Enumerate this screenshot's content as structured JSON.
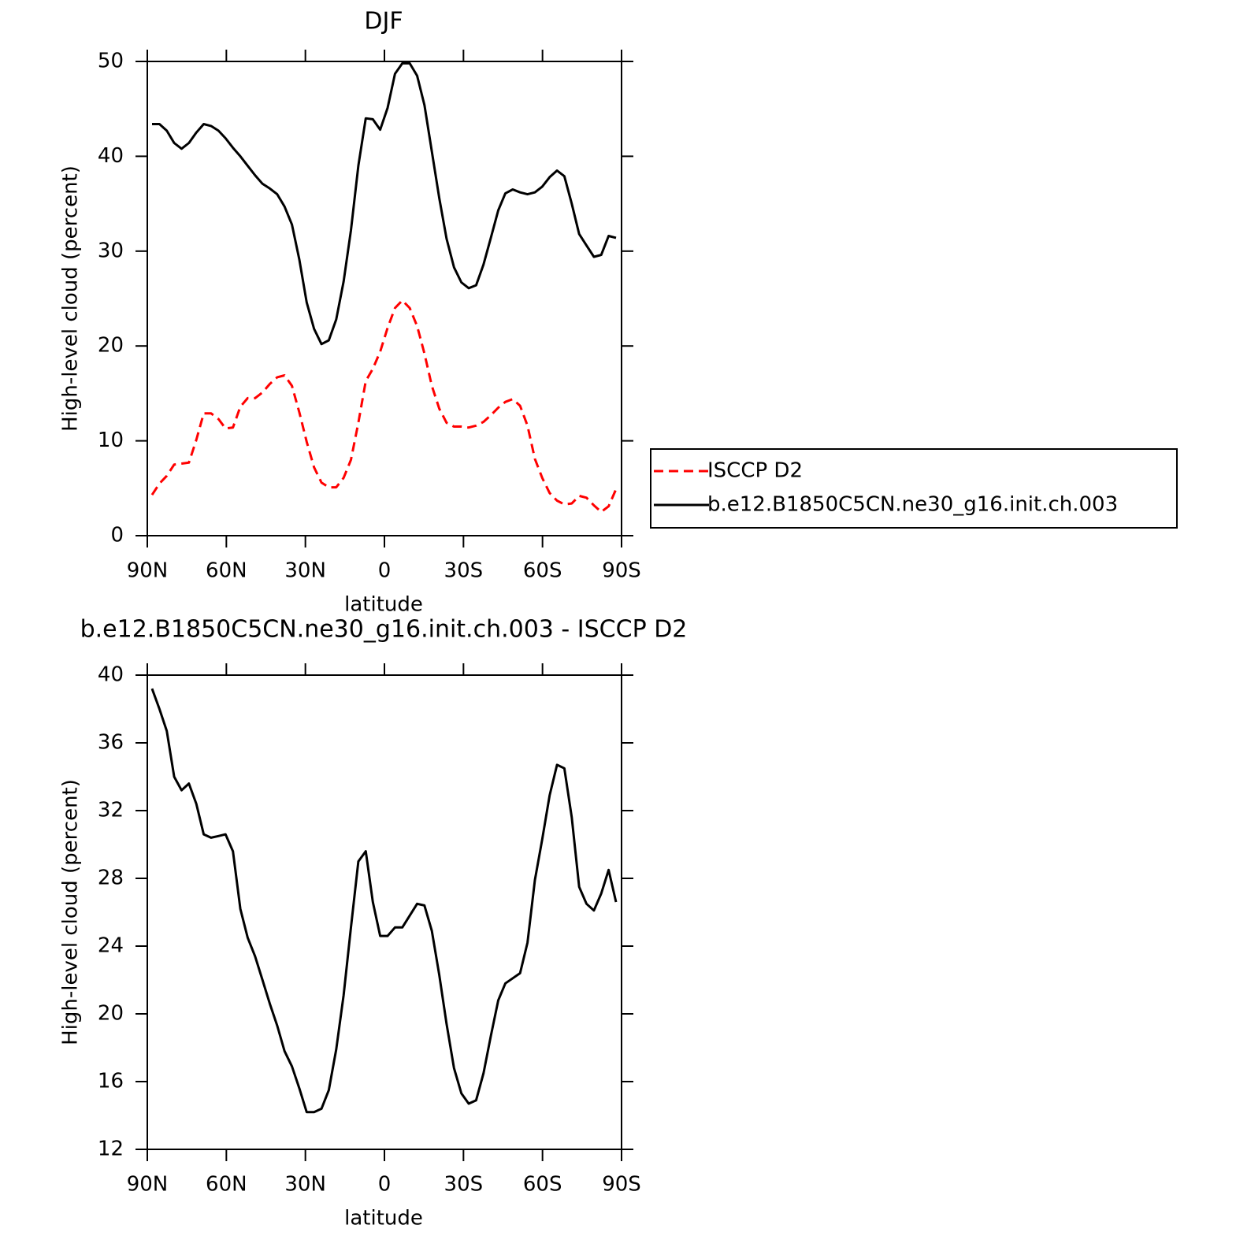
{
  "chart_data": [
    {
      "type": "line",
      "title": "DJF",
      "xlabel": "latitude",
      "ylabel": "High-level cloud (percent)",
      "x": [
        88.2,
        85.4,
        82.6,
        79.8,
        77.0,
        74.2,
        71.4,
        68.6,
        65.8,
        63.0,
        60.3,
        57.5,
        54.7,
        51.9,
        49.1,
        46.3,
        43.5,
        40.7,
        37.9,
        35.1,
        32.3,
        29.5,
        26.7,
        23.9,
        21.1,
        18.3,
        15.5,
        12.7,
        9.9,
        7.1,
        4.4,
        1.6,
        -1.2,
        -4.0,
        -6.8,
        -9.6,
        -12.4,
        -15.2,
        -18.0,
        -20.8,
        -23.6,
        -26.4,
        -29.2,
        -32.0,
        -34.8,
        -37.6,
        -40.4,
        -43.2,
        -45.9,
        -48.7,
        -51.5,
        -54.3,
        -57.1,
        -59.9,
        -62.7,
        -65.5,
        -68.3,
        -71.1,
        -73.9,
        -76.7,
        -79.5,
        -82.3,
        -85.1,
        -87.9
      ],
      "series": [
        {
          "name": "ISCCP D2",
          "color": "#ff0000",
          "style": "dashed",
          "values": [
            4.3,
            5.5,
            6.3,
            7.5,
            7.6,
            7.7,
            10.1,
            12.9,
            12.9,
            12.3,
            11.3,
            11.4,
            13.6,
            14.5,
            14.5,
            15.1,
            16.0,
            16.7,
            16.9,
            15.8,
            13.0,
            9.9,
            7.2,
            5.6,
            5.1,
            5.1,
            6.1,
            8.0,
            11.9,
            16.3,
            17.6,
            19.4,
            21.9,
            24.0,
            24.8,
            24.0,
            22.1,
            19.2,
            15.8,
            13.4,
            11.9,
            11.5,
            11.5,
            11.4,
            11.6,
            12.0,
            12.7,
            13.5,
            14.1,
            14.4,
            13.7,
            11.6,
            8.1,
            6.1,
            4.5,
            3.7,
            3.3,
            3.4,
            4.2,
            4.0,
            3.2,
            2.5,
            3.1,
            4.9
          ]
        },
        {
          "name": "b.e12.B1850C5CN.ne30_g16.init.ch.003",
          "color": "#000000",
          "style": "solid",
          "values": [
            43.4,
            43.4,
            42.7,
            41.4,
            40.8,
            41.4,
            42.5,
            43.4,
            43.2,
            42.7,
            41.9,
            40.9,
            40.0,
            39.0,
            38.0,
            37.1,
            36.6,
            36.0,
            34.7,
            32.8,
            29.1,
            24.6,
            21.8,
            20.2,
            20.6,
            22.8,
            26.8,
            32.2,
            39.0,
            44.0,
            43.9,
            42.8,
            45.1,
            48.7,
            49.8,
            49.8,
            48.5,
            45.4,
            40.5,
            35.6,
            31.3,
            28.3,
            26.7,
            26.1,
            26.4,
            28.6,
            31.4,
            34.3,
            36.1,
            36.5,
            36.2,
            36.0,
            36.2,
            36.8,
            37.8,
            38.5,
            37.9,
            35.0,
            31.8,
            30.6,
            29.4,
            29.6,
            31.6,
            31.4
          ]
        }
      ],
      "xlim": [
        90,
        -90
      ],
      "xticks": [
        {
          "value": 90,
          "label": "90N"
        },
        {
          "value": 60,
          "label": "60N"
        },
        {
          "value": 30,
          "label": "30N"
        },
        0,
        {
          "value": -30,
          "label": "30S"
        },
        {
          "value": -60,
          "label": "60S"
        },
        {
          "value": -90,
          "label": "90S"
        }
      ],
      "ylim": [
        0,
        50
      ],
      "yticks": [
        0,
        10,
        20,
        30,
        40,
        50
      ],
      "legend": "right"
    },
    {
      "type": "line",
      "title": "b.e12.B1850C5CN.ne30_g16.init.ch.003 - ISCCP D2",
      "xlabel": "latitude",
      "ylabel": "High-level cloud (percent)",
      "x": [
        88.2,
        85.4,
        82.6,
        79.8,
        77.0,
        74.2,
        71.4,
        68.6,
        65.8,
        63.0,
        60.3,
        57.5,
        54.7,
        51.9,
        49.1,
        46.3,
        43.5,
        40.7,
        37.9,
        35.1,
        32.3,
        29.5,
        26.7,
        23.9,
        21.1,
        18.3,
        15.5,
        12.7,
        9.9,
        7.1,
        4.4,
        1.6,
        -1.2,
        -4.0,
        -6.8,
        -9.6,
        -12.4,
        -15.2,
        -18.0,
        -20.8,
        -23.6,
        -26.4,
        -29.2,
        -32.0,
        -34.8,
        -37.6,
        -40.4,
        -43.2,
        -45.9,
        -48.7,
        -51.5,
        -54.3,
        -57.1,
        -59.9,
        -62.7,
        -65.5,
        -68.3,
        -71.1,
        -73.9,
        -76.7,
        -79.5,
        -82.3,
        -85.1,
        -87.9
      ],
      "color": "#000000",
      "values": [
        39.2,
        38.0,
        36.7,
        34.0,
        33.2,
        33.6,
        32.4,
        30.6,
        30.4,
        30.5,
        30.6,
        29.6,
        26.2,
        24.5,
        23.4,
        22.0,
        20.6,
        19.3,
        17.8,
        16.9,
        15.6,
        14.2,
        14.2,
        14.4,
        15.5,
        17.9,
        21.1,
        25.1,
        29.0,
        29.6,
        26.6,
        24.6,
        24.6,
        25.1,
        25.1,
        25.8,
        26.5,
        26.4,
        24.9,
        22.3,
        19.4,
        16.8,
        15.3,
        14.7,
        14.9,
        16.5,
        18.7,
        20.8,
        21.8,
        22.1,
        22.4,
        24.2,
        27.9,
        30.3,
        32.9,
        34.7,
        34.5,
        31.6,
        27.5,
        26.5,
        26.1,
        27.1,
        28.5,
        26.6
      ],
      "xlim": [
        90,
        -90
      ],
      "xticks": [
        {
          "value": 90,
          "label": "90N"
        },
        {
          "value": 60,
          "label": "60N"
        },
        {
          "value": 30,
          "label": "30N"
        },
        0,
        {
          "value": -30,
          "label": "30S"
        },
        {
          "value": -60,
          "label": "60S"
        },
        {
          "value": -90,
          "label": "90S"
        }
      ],
      "ylim": [
        12,
        40
      ],
      "yticks": [
        12,
        16,
        20,
        24,
        28,
        32,
        36,
        40
      ]
    }
  ]
}
